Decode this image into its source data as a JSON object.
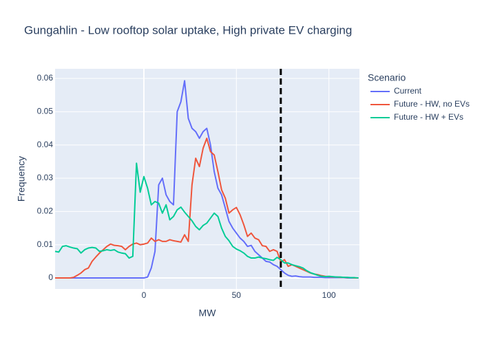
{
  "chart_data": {
    "type": "line",
    "title": "Gungahlin - Low rooftop solar uptake, High private EV charging",
    "x_label": "MW",
    "y_label": "Frequency",
    "legend_title": "Scenario",
    "x": [
      -48,
      -46,
      -44,
      -42,
      -40,
      -38,
      -36,
      -34,
      -32,
      -30,
      -28,
      -26,
      -24,
      -22,
      -20,
      -18,
      -16,
      -14,
      -12,
      -10,
      -8,
      -6,
      -4,
      -2,
      0,
      2,
      4,
      6,
      8,
      10,
      12,
      14,
      16,
      18,
      20,
      22,
      24,
      26,
      28,
      30,
      32,
      34,
      36,
      38,
      40,
      42,
      44,
      46,
      48,
      50,
      52,
      54,
      56,
      58,
      60,
      62,
      64,
      66,
      68,
      70,
      72,
      74,
      76,
      78,
      80,
      82,
      84,
      86,
      88,
      90,
      92,
      94,
      96,
      98,
      100,
      102,
      104,
      106,
      108,
      110,
      112,
      114,
      116
    ],
    "series": [
      {
        "name": "Current",
        "color": "#636efa",
        "values": [
          0,
          0,
          0,
          0,
          0,
          0,
          0,
          0,
          0,
          0,
          0,
          0,
          0,
          0,
          0,
          0,
          0,
          0,
          0,
          0,
          0,
          0,
          0,
          0,
          0,
          0.0003,
          0.003,
          0.008,
          0.028,
          0.03,
          0.025,
          0.023,
          0.022,
          0.05,
          0.053,
          0.0593,
          0.048,
          0.045,
          0.044,
          0.042,
          0.044,
          0.045,
          0.04,
          0.032,
          0.027,
          0.025,
          0.021,
          0.017,
          0.015,
          0.0135,
          0.012,
          0.011,
          0.0095,
          0.0098,
          0.008,
          0.007,
          0.006,
          0.005,
          0.0048,
          0.004,
          0.0035,
          0.0025,
          0.0015,
          0.0008,
          0.0005,
          0.0006,
          0.0004,
          0.0003,
          0.0003,
          0.0003,
          0.0002,
          0.0002,
          0.0002,
          0.0001,
          0.0001,
          0.0001,
          0.0001,
          0.0001,
          0.0001,
          0,
          0,
          0,
          0
        ]
      },
      {
        "name": "Future - HW, no EVs",
        "color": "#ef553b",
        "values": [
          0,
          0,
          0,
          0,
          0,
          0.0002,
          0.0008,
          0.0015,
          0.0025,
          0.003,
          0.005,
          0.0063,
          0.0075,
          0.0085,
          0.0095,
          0.0102,
          0.0098,
          0.0097,
          0.0095,
          0.0085,
          0.0095,
          0.0102,
          0.0105,
          0.01,
          0.0102,
          0.0105,
          0.012,
          0.011,
          0.0115,
          0.011,
          0.011,
          0.0115,
          0.0112,
          0.011,
          0.0108,
          0.013,
          0.011,
          0.028,
          0.036,
          0.0335,
          0.039,
          0.042,
          0.038,
          0.037,
          0.032,
          0.0265,
          0.024,
          0.0195,
          0.0205,
          0.0212,
          0.019,
          0.016,
          0.0125,
          0.0135,
          0.012,
          0.0115,
          0.0097,
          0.0095,
          0.008,
          0.0085,
          0.008,
          0.0048,
          0.0055,
          0.0035,
          0.004,
          0.0035,
          0.003,
          0.0025,
          0.002,
          0.0015,
          0.0012,
          0.001,
          0.0007,
          0.0005,
          0.0004,
          0.0003,
          0.0003,
          0.0002,
          0.0002,
          0.0001,
          0.0001,
          0,
          0
        ]
      },
      {
        "name": "Future - HW + EVs",
        "color": "#00cc96",
        "values": [
          0.008,
          0.0078,
          0.0095,
          0.0097,
          0.0093,
          0.009,
          0.0088,
          0.0075,
          0.0085,
          0.009,
          0.0092,
          0.009,
          0.008,
          0.0082,
          0.0085,
          0.0083,
          0.0085,
          0.0078,
          0.0075,
          0.0073,
          0.006,
          0.0065,
          0.0345,
          0.0258,
          0.0305,
          0.027,
          0.022,
          0.023,
          0.0225,
          0.0195,
          0.022,
          0.0175,
          0.0185,
          0.0205,
          0.0213,
          0.0198,
          0.0185,
          0.0172,
          0.0155,
          0.0145,
          0.0158,
          0.0165,
          0.018,
          0.0195,
          0.0185,
          0.015,
          0.0125,
          0.0112,
          0.0095,
          0.0087,
          0.0082,
          0.0075,
          0.0065,
          0.006,
          0.006,
          0.0063,
          0.006,
          0.0058,
          0.0055,
          0.0053,
          0.0062,
          0.0055,
          0.0045,
          0.0045,
          0.004,
          0.0037,
          0.0034,
          0.003,
          0.0022,
          0.0016,
          0.0012,
          0.0008,
          0.0005,
          0.0004,
          0.0005,
          0.0004,
          0.0003,
          0.0003,
          0.0002,
          0.0002,
          0.0001,
          0.0001,
          0
        ]
      }
    ],
    "xlim": [
      -48,
      116.5
    ],
    "ylim": [
      -0.0033,
      0.0629
    ],
    "xticks": [
      0,
      50,
      100
    ],
    "yticks": [
      0,
      0.01,
      0.02,
      0.03,
      0.04,
      0.05,
      0.06
    ],
    "grid": true,
    "vline": 74,
    "vline_color": "#000000"
  }
}
